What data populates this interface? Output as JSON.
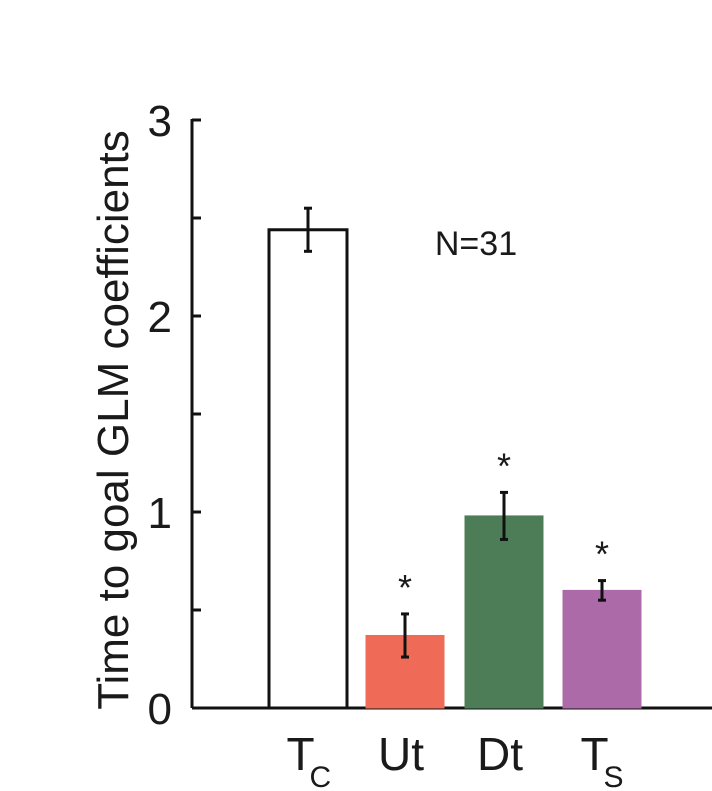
{
  "chart_data": {
    "type": "bar",
    "ylabel": "Time to goal GLM coefficients",
    "ylim": [
      0,
      3
    ],
    "yticks": [
      0,
      1,
      2,
      3
    ],
    "yticks_minor": [
      0.5,
      1.5,
      2.5
    ],
    "annotation": "N=31",
    "categories": [
      {
        "main": "T",
        "sub": "C"
      },
      {
        "main": "Ut",
        "sub": ""
      },
      {
        "main": "Dt",
        "sub": ""
      },
      {
        "main": "T",
        "sub": "S"
      }
    ],
    "values": [
      2.44,
      0.37,
      0.98,
      0.6
    ],
    "errors": [
      0.11,
      0.11,
      0.12,
      0.05
    ],
    "significance": [
      "",
      "*",
      "*",
      "*"
    ],
    "colors": [
      "#ffffff",
      "#ef6a57",
      "#4d7d56",
      "#ad6aa8"
    ],
    "edge_colors": [
      "#111111",
      "#ef6a57",
      "#4d7d56",
      "#ad6aa8"
    ]
  }
}
